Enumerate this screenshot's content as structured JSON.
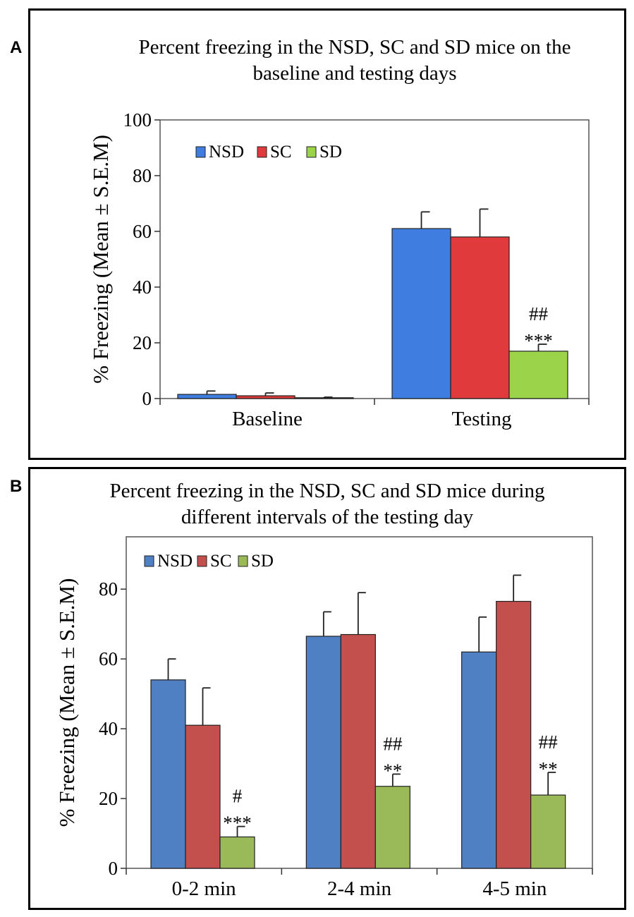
{
  "panels": [
    {
      "letter": "A"
    },
    {
      "letter": "B"
    }
  ],
  "colors": {
    "A": {
      "NSD": "#3f7ee0",
      "SC": "#e03a3c",
      "SD": "#9bd34b"
    },
    "B": {
      "NSD": "#4f80c4",
      "SC": "#c4504e",
      "SD": "#9aba5a"
    }
  },
  "chart_data": [
    {
      "type": "bar",
      "title_lines": [
        "Percent freezing in the NSD, SC and SD mice on the",
        "baseline and testing days"
      ],
      "ylabel": "% Freezing (Mean ± S.E.M)",
      "xlabel": "",
      "ylim": [
        0,
        100
      ],
      "yticks": [
        0,
        20,
        40,
        60,
        80,
        100
      ],
      "categories": [
        "Baseline",
        "Testing"
      ],
      "legend": [
        "NSD",
        "SC",
        "SD"
      ],
      "legend_position": "top-left",
      "series": [
        {
          "name": "NSD",
          "values": [
            1.5,
            61
          ],
          "errors": [
            1.2,
            6
          ]
        },
        {
          "name": "SC",
          "values": [
            1.0,
            58
          ],
          "errors": [
            1.0,
            10
          ]
        },
        {
          "name": "SD",
          "values": [
            0.3,
            17
          ],
          "errors": [
            0.2,
            2.5
          ]
        }
      ],
      "annotations": [
        {
          "series": "SD",
          "category": "Testing",
          "lines": [
            "##",
            "***"
          ]
        }
      ]
    },
    {
      "type": "bar",
      "title_lines": [
        "Percent freezing in the NSD, SC and SD mice during",
        "different intervals of the testing day"
      ],
      "ylabel": "% Freezing (Mean ± S.E.M)",
      "xlabel": "",
      "ylim": [
        0,
        95
      ],
      "yticks": [
        0,
        20,
        40,
        60,
        80
      ],
      "categories": [
        "0-2 min",
        "2-4 min",
        "4-5 min"
      ],
      "legend": [
        "NSD",
        "SC",
        "SD"
      ],
      "legend_position": "top-left",
      "series": [
        {
          "name": "NSD",
          "values": [
            54,
            66.5,
            62
          ],
          "errors": [
            6,
            7,
            10
          ]
        },
        {
          "name": "SC",
          "values": [
            41,
            67,
            76.5
          ],
          "errors": [
            10.7,
            12,
            7.5
          ]
        },
        {
          "name": "SD",
          "values": [
            9,
            23.5,
            21
          ],
          "errors": [
            3,
            3.5,
            6.5
          ]
        }
      ],
      "annotations": [
        {
          "series": "SD",
          "category": "0-2 min",
          "lines": [
            "#",
            "***"
          ]
        },
        {
          "series": "SD",
          "category": "2-4 min",
          "lines": [
            "##",
            "**"
          ]
        },
        {
          "series": "SD",
          "category": "4-5 min",
          "lines": [
            "##",
            "**"
          ]
        }
      ]
    }
  ]
}
